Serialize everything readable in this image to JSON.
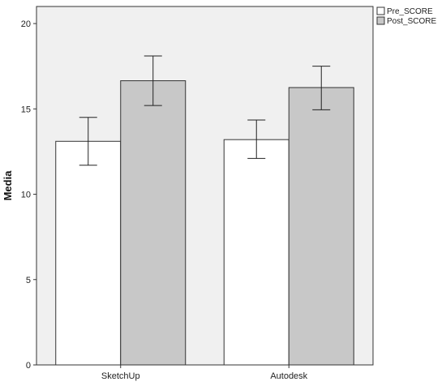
{
  "chart_data": {
    "type": "bar",
    "categories": [
      "SketchUp",
      "Autodesk"
    ],
    "series": [
      {
        "name": "Pre_SCORE",
        "color": "#ffffff",
        "values": [
          13.1,
          13.2
        ],
        "error_low": [
          11.7,
          12.1
        ],
        "error_high": [
          14.5,
          14.35
        ]
      },
      {
        "name": "Post_SCORE",
        "color": "#c8c8c8",
        "values": [
          16.65,
          16.25
        ],
        "error_low": [
          15.2,
          14.95
        ],
        "error_high": [
          18.1,
          17.5
        ]
      }
    ],
    "ylabel": "Media",
    "ylim": [
      0,
      21
    ],
    "yticks": [
      0,
      5,
      10,
      15,
      20
    ],
    "plot_background": "#f0f0f0",
    "legend_position": "top-right",
    "error_bars": true
  }
}
